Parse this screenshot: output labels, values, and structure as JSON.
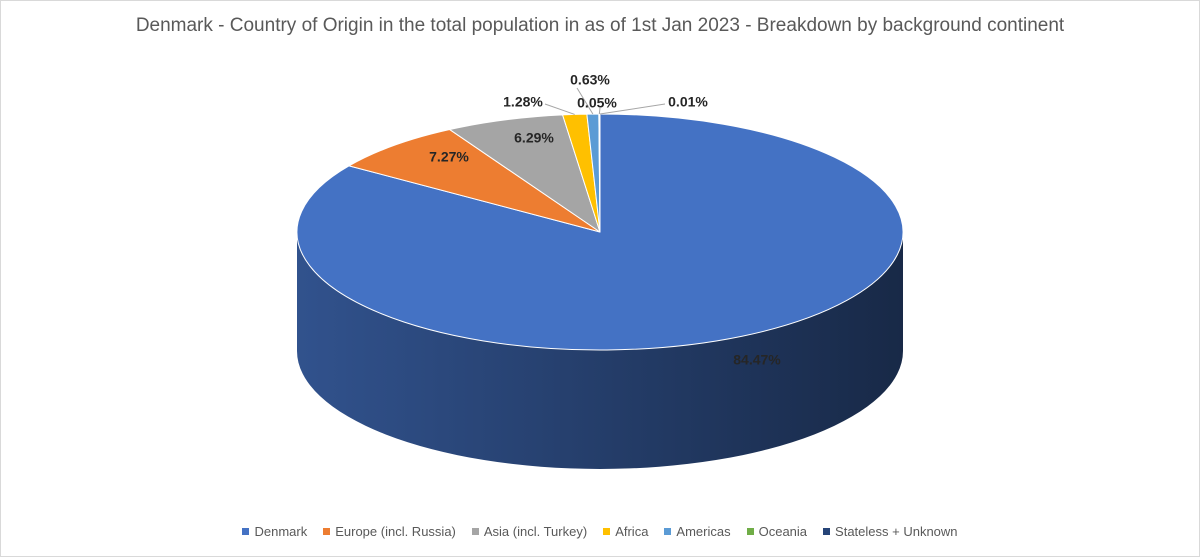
{
  "chart_data": {
    "type": "pie",
    "title": "Denmark - Country of Origin in the total population in as of 1st Jan 2023 - Breakdown by background continent",
    "legend_position": "bottom",
    "series": [
      {
        "name": "Denmark",
        "value": 84.47,
        "label": "84.47%",
        "color": "#4472C4"
      },
      {
        "name": "Europe (incl. Russia)",
        "value": 7.27,
        "label": "7.27%",
        "color": "#ED7D31"
      },
      {
        "name": "Asia (incl. Turkey)",
        "value": 6.29,
        "label": "6.29%",
        "color": "#A5A5A5"
      },
      {
        "name": "Africa",
        "value": 1.28,
        "label": "1.28%",
        "color": "#FFC000"
      },
      {
        "name": "Americas",
        "value": 0.63,
        "label": "0.63%",
        "color": "#5B9BD5"
      },
      {
        "name": "Oceania",
        "value": 0.05,
        "label": "0.05%",
        "color": "#70AD47"
      },
      {
        "name": "Stateless + Unknown",
        "value": 0.01,
        "label": "0.01%",
        "color": "#264478"
      }
    ]
  }
}
